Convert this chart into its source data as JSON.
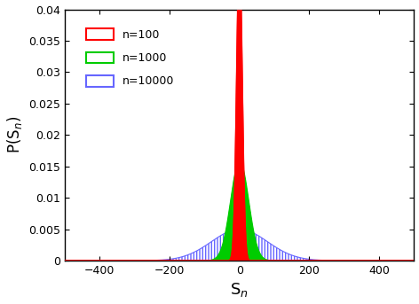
{
  "title": "",
  "xlabel": "S_n",
  "ylabel": "P(S_n)",
  "xlim": [
    -500,
    500
  ],
  "ylim": [
    0,
    0.04
  ],
  "yticks": [
    0,
    0.005,
    0.01,
    0.015,
    0.02,
    0.025,
    0.03,
    0.035,
    0.04
  ],
  "xticks": [
    -400,
    -200,
    0,
    200,
    400
  ],
  "series": [
    {
      "label": "n=100",
      "n": 100,
      "gamma": 0.8,
      "edge_color": "#ff0000",
      "fill_color": "#ff0000",
      "alpha": 1.0,
      "zorder": 3,
      "hatch": false
    },
    {
      "label": "n=1000",
      "n": 1000,
      "gamma": 0.8,
      "edge_color": "#00cc00",
      "fill_color": "#00cc00",
      "alpha": 1.0,
      "zorder": 2,
      "hatch": false
    },
    {
      "label": "n=10000",
      "n": 10000,
      "gamma": 0.8,
      "edge_color": "#6666ff",
      "fill_color": "none",
      "alpha": 1.0,
      "zorder": 1,
      "hatch": true
    }
  ],
  "legend_loc": "upper left",
  "background_color": "#ffffff",
  "figsize": [
    4.72,
    3.43
  ],
  "dpi": 100
}
